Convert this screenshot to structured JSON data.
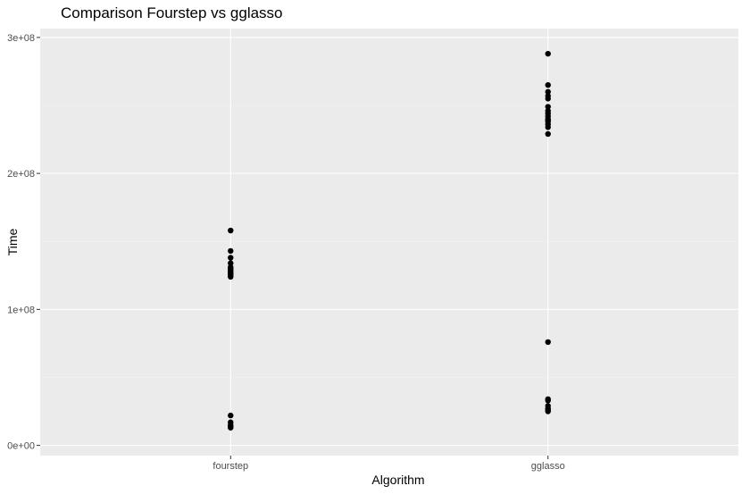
{
  "chart_data": {
    "type": "scatter",
    "title": "Comparison Fourstep vs gglasso",
    "xlabel": "Algorithm",
    "ylabel": "Time",
    "categories": [
      "fourstep",
      "gglasso"
    ],
    "y_ticks": [
      0,
      100000000,
      200000000,
      300000000
    ],
    "y_tick_labels": [
      "0e+00",
      "1e+08",
      "2e+08",
      "3e+08"
    ],
    "ylim": [
      0,
      300000000
    ],
    "grid": true,
    "legend": "none",
    "series": [
      {
        "category": "fourstep",
        "values": [
          158000000,
          143000000,
          138000000,
          134000000,
          131000000,
          130000000,
          129000000,
          128000000,
          127000000,
          126000000,
          125000000,
          124000000,
          22000000,
          17000000,
          15000000,
          14000000,
          13000000
        ]
      },
      {
        "category": "gglasso",
        "values": [
          288000000,
          265000000,
          260000000,
          257000000,
          255000000,
          249000000,
          246000000,
          244000000,
          242000000,
          240000000,
          239000000,
          238000000,
          236000000,
          234000000,
          229000000,
          76000000,
          34000000,
          33000000,
          29000000,
          27000000,
          26000000,
          25000000
        ]
      }
    ],
    "colors": {
      "panel_bg": "#ebebeb",
      "grid_major": "#ffffff",
      "point": "#000000",
      "tick_text": "#4d4d4d"
    }
  }
}
